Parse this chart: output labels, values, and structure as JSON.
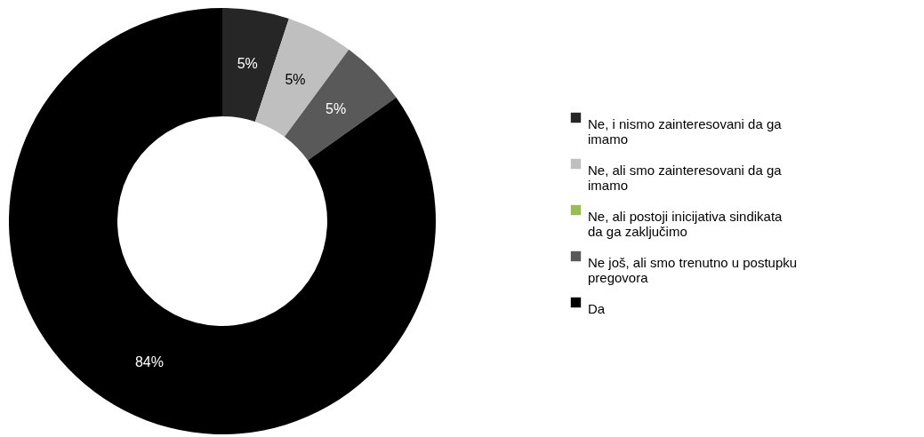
{
  "chart_data": {
    "type": "donut",
    "categories": [
      "Ne, i nismo zainteresovani da ga imamo",
      "Ne, ali smo zainteresovani da ga imamo",
      "Ne, ali postoji inicijativa sindikata da ga zaključimo",
      "Ne još, ali smo trenutno u postupku pregovora",
      "Da"
    ],
    "values": [
      5,
      5,
      0,
      5,
      84
    ],
    "colors": [
      "#262626",
      "#bfbfbf",
      "#9bbb59",
      "#595959",
      "#000000"
    ],
    "value_labels": [
      "5%",
      "5%",
      null,
      "5%",
      "84%"
    ],
    "legend": "right"
  }
}
